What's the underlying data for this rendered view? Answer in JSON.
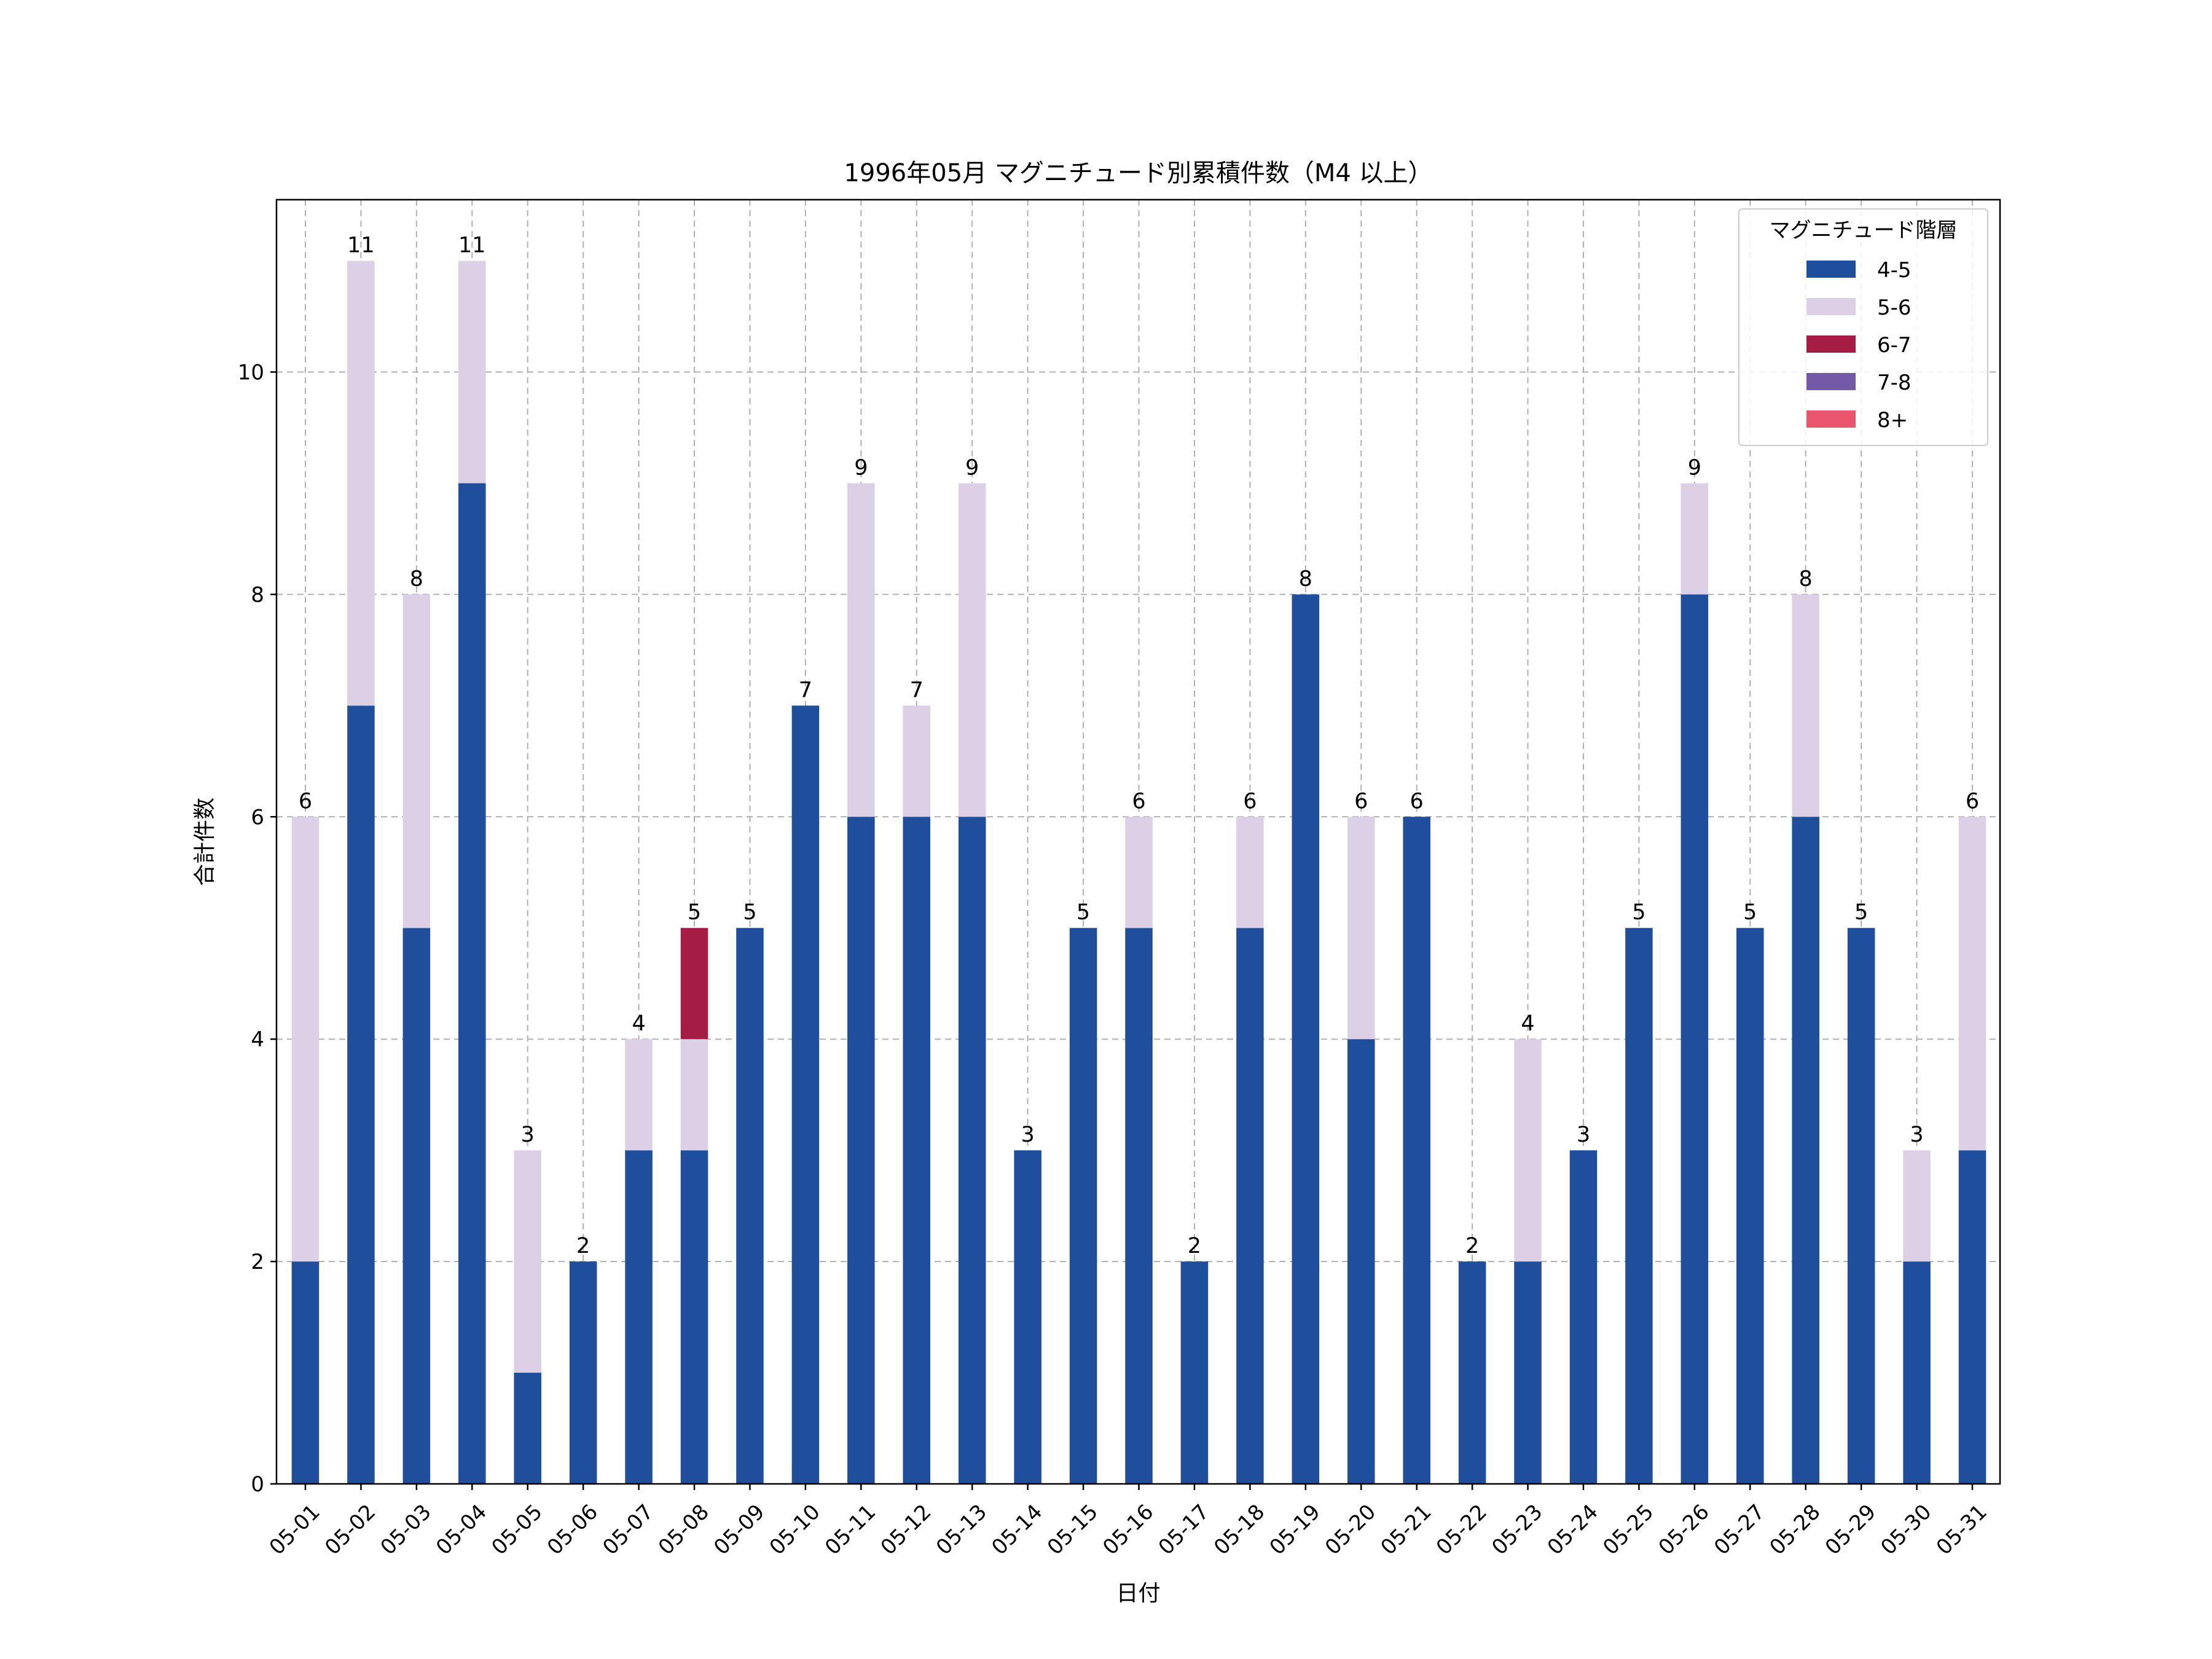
{
  "chart_data": {
    "type": "bar",
    "stacked": true,
    "title": "1996年05月 マグニチュード別累積件数（M4 以上）",
    "xlabel": "日付",
    "ylabel": "合計件数",
    "ylim": [
      0,
      11.55
    ],
    "yticks": [
      0,
      2,
      4,
      6,
      8,
      10
    ],
    "grid": true,
    "legend_position": "top-right",
    "legend_title": "マグニチュード階層",
    "categories": [
      "05-01",
      "05-02",
      "05-03",
      "05-04",
      "05-05",
      "05-06",
      "05-07",
      "05-08",
      "05-09",
      "05-10",
      "05-11",
      "05-12",
      "05-13",
      "05-14",
      "05-15",
      "05-16",
      "05-17",
      "05-18",
      "05-19",
      "05-20",
      "05-21",
      "05-22",
      "05-23",
      "05-24",
      "05-25",
      "05-26",
      "05-27",
      "05-28",
      "05-29",
      "05-30",
      "05-31"
    ],
    "series": [
      {
        "name": "4-5",
        "color": "#1f4e9c",
        "values": [
          2,
          7,
          5,
          9,
          1,
          2,
          3,
          3,
          5,
          7,
          6,
          6,
          6,
          3,
          5,
          5,
          2,
          5,
          8,
          4,
          6,
          2,
          2,
          3,
          5,
          8,
          5,
          6,
          5,
          2,
          3
        ]
      },
      {
        "name": "5-6",
        "color": "#dcd0e6",
        "values": [
          4,
          4,
          3,
          2,
          2,
          0,
          1,
          1,
          0,
          0,
          3,
          1,
          3,
          0,
          0,
          1,
          0,
          1,
          0,
          2,
          0,
          0,
          2,
          0,
          0,
          1,
          0,
          2,
          0,
          1,
          3
        ]
      },
      {
        "name": "6-7",
        "color": "#a51c44",
        "values": [
          0,
          0,
          0,
          0,
          0,
          0,
          0,
          1,
          0,
          0,
          0,
          0,
          0,
          0,
          0,
          0,
          0,
          0,
          0,
          0,
          0,
          0,
          0,
          0,
          0,
          0,
          0,
          0,
          0,
          0,
          0
        ]
      },
      {
        "name": "7-8",
        "color": "#7459a8",
        "values": [
          0,
          0,
          0,
          0,
          0,
          0,
          0,
          0,
          0,
          0,
          0,
          0,
          0,
          0,
          0,
          0,
          0,
          0,
          0,
          0,
          0,
          0,
          0,
          0,
          0,
          0,
          0,
          0,
          0,
          0,
          0
        ]
      },
      {
        "name": "8+",
        "color": "#e9556b",
        "values": [
          0,
          0,
          0,
          0,
          0,
          0,
          0,
          0,
          0,
          0,
          0,
          0,
          0,
          0,
          0,
          0,
          0,
          0,
          0,
          0,
          0,
          0,
          0,
          0,
          0,
          0,
          0,
          0,
          0,
          0,
          0
        ]
      }
    ],
    "totals": [
      6,
      11,
      8,
      11,
      3,
      2,
      4,
      5,
      5,
      7,
      9,
      7,
      9,
      3,
      5,
      6,
      2,
      6,
      8,
      6,
      6,
      2,
      4,
      3,
      5,
      9,
      5,
      8,
      5,
      3,
      6
    ]
  }
}
